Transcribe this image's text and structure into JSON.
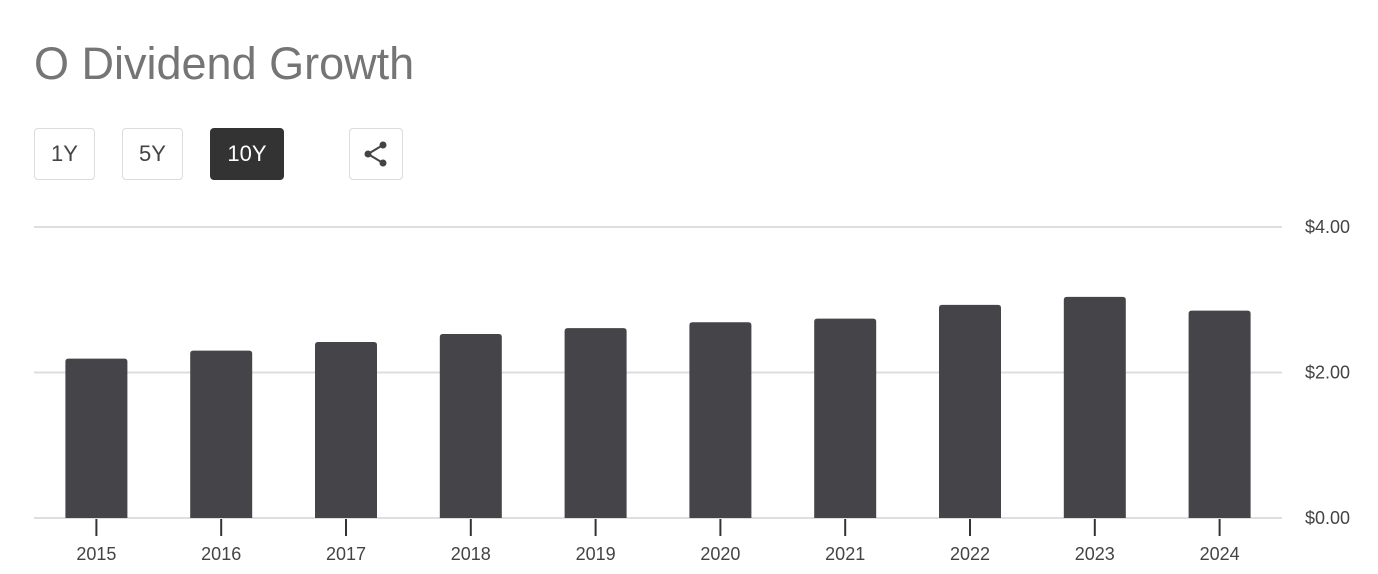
{
  "title": "O Dividend Growth",
  "controls": {
    "ranges": [
      "1Y",
      "5Y",
      "10Y"
    ],
    "active": 2
  },
  "chart_data": {
    "type": "bar",
    "categories": [
      "2015",
      "2016",
      "2017",
      "2018",
      "2019",
      "2020",
      "2021",
      "2022",
      "2023",
      "2024"
    ],
    "values": [
      2.19,
      2.3,
      2.42,
      2.53,
      2.61,
      2.69,
      2.74,
      2.93,
      3.04,
      2.85
    ],
    "color": "#454449",
    "ylim": [
      0,
      4
    ],
    "yticks": [
      {
        "value": 0,
        "label": "$0.00"
      },
      {
        "value": 2,
        "label": "$2.00"
      },
      {
        "value": 4,
        "label": "$4.00"
      }
    ],
    "grid": true
  }
}
